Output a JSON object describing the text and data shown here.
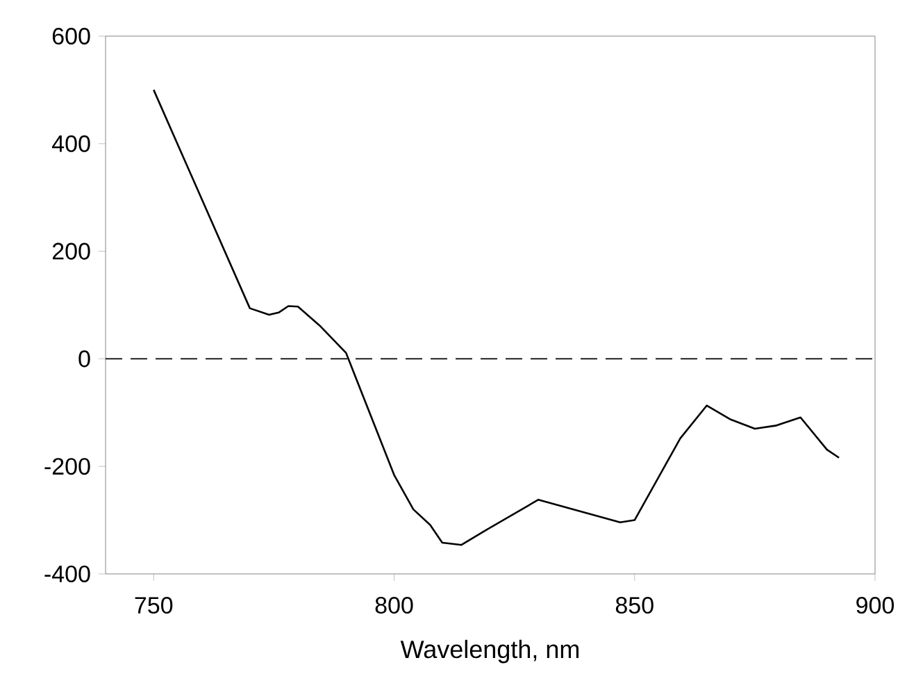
{
  "chart_data": {
    "type": "line",
    "xlabel": "Wavelength, nm",
    "x": [
      750,
      770,
      774,
      776,
      778,
      780,
      784.5,
      790,
      800,
      804,
      807.5,
      810,
      814,
      819,
      830,
      847,
      850,
      859.5,
      865,
      870,
      875,
      879.5,
      884.5,
      890,
      892.5
    ],
    "series": [
      {
        "color": "#000000",
        "values": [
          500,
          94,
          82,
          86,
          98,
          97,
          62,
          11,
          -216,
          -280,
          -309,
          -342,
          -346,
          -319,
          -262,
          -304,
          -300,
          -148,
          -87,
          -113,
          -130,
          -124,
          -109,
          -169,
          -184
        ]
      }
    ],
    "xlim": [
      740,
      900
    ],
    "xticks": [
      750,
      800,
      850,
      900
    ],
    "ylim": [
      -400,
      600
    ],
    "yticks": [
      -400,
      -200,
      0,
      200,
      400,
      600
    ],
    "ref_lines": [
      {
        "axis": "y",
        "value": 0,
        "color": "#000000",
        "line_style": "dashed"
      }
    ],
    "marker": "none",
    "line_style": "solid"
  }
}
